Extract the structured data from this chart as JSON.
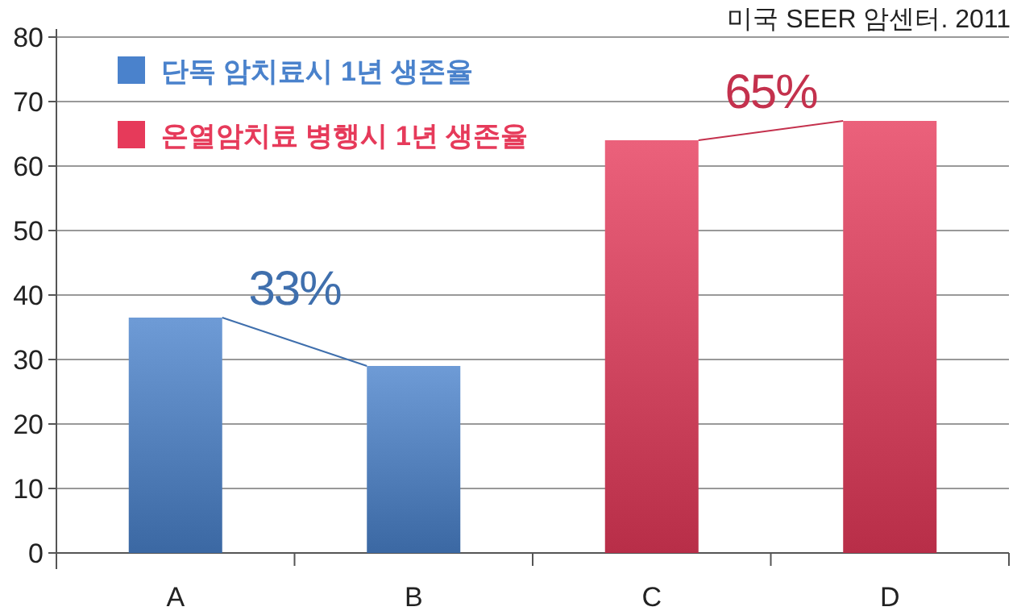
{
  "chart_data": {
    "type": "bar",
    "categories": [
      "A",
      "B",
      "C",
      "D"
    ],
    "series": [
      {
        "name": "단독 암치료시 1년 생존율",
        "color": "#4a82cc",
        "values": [
          36.5,
          29,
          null,
          null
        ]
      },
      {
        "name": "온열암치료 병행시 1년 생존율",
        "color": "#e63a5a",
        "values": [
          null,
          null,
          64,
          67
        ]
      }
    ],
    "ylim": [
      0,
      80
    ],
    "yticks": [
      0,
      10,
      20,
      30,
      40,
      50,
      60,
      70,
      80
    ],
    "grid": "y",
    "legend": "top left",
    "annotations": [
      "미국 SEER 암센터. 2011",
      "33%",
      "65%"
    ]
  }
}
